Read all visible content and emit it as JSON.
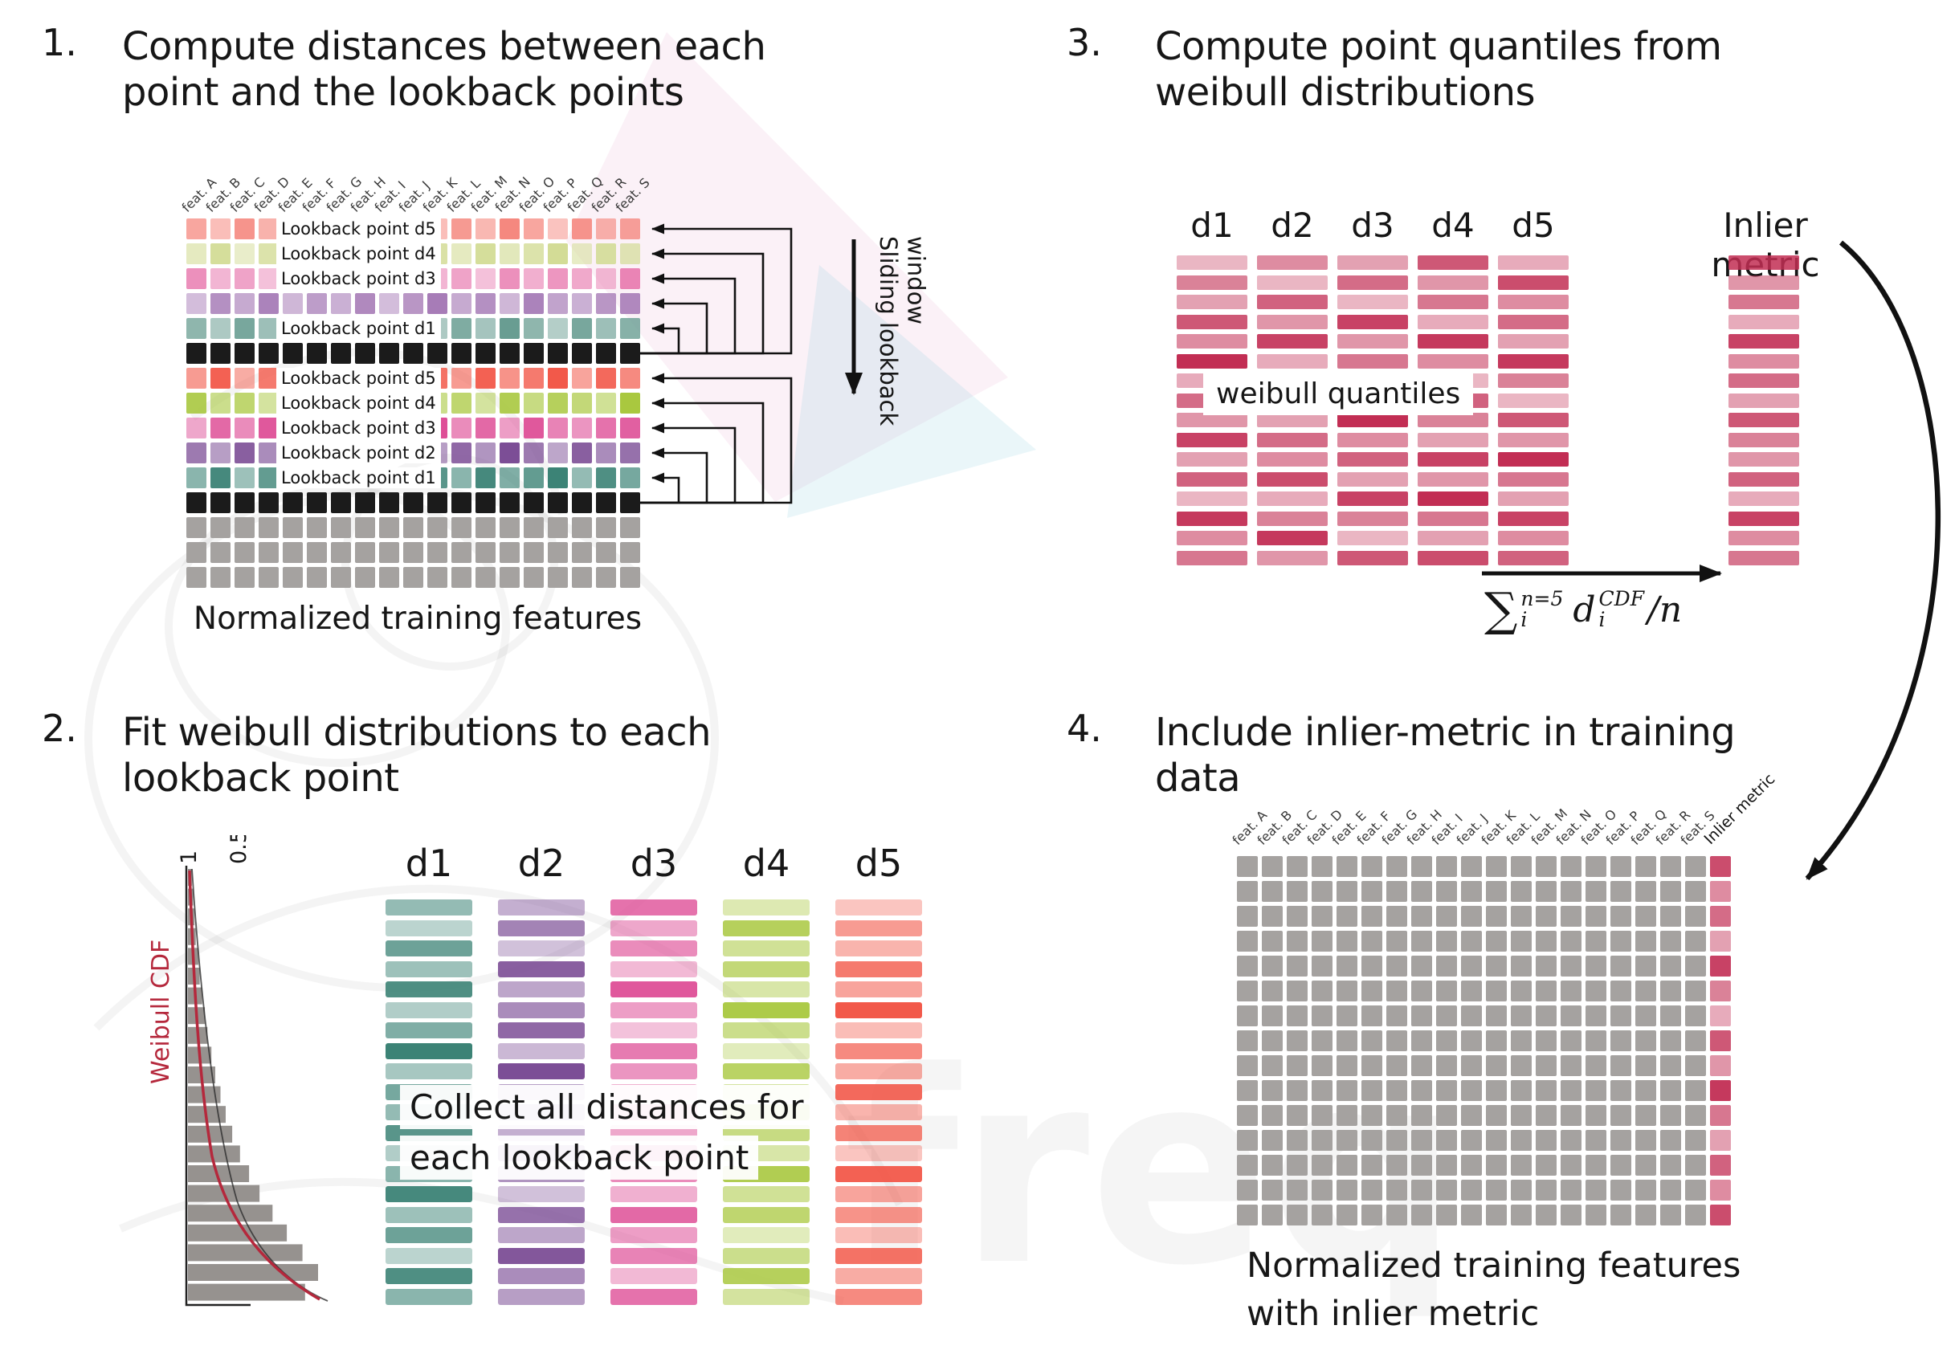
{
  "watermark": {
    "text": "freq"
  },
  "colors": {
    "crimson": "#c22e54",
    "black_cell": "#1b1b1b",
    "gray_cell": "#a5a2a0",
    "weibull_red": "#b5283c",
    "d1": "#3c8376",
    "d2": "#7c4e96",
    "d3": "#de4f97",
    "d4": "#a9c83f",
    "d5": "#f2594a"
  },
  "distance_labels": [
    "d1",
    "d2",
    "d3",
    "d4",
    "d5"
  ],
  "steps": [
    {
      "num": "1.",
      "title": "Compute distances between each\npoint and the lookback points"
    },
    {
      "num": "2.",
      "title": "Fit weibull distributions to each\nlookback point"
    },
    {
      "num": "3.",
      "title": "Compute point quantiles from\nweibull distributions"
    },
    {
      "num": "4.",
      "title": "Include inlier-metric in training\ndata"
    }
  ],
  "panel1": {
    "feature_labels": [
      "feat. A",
      "feat. B",
      "feat. C",
      "feat. D",
      "feat. E",
      "feat. F",
      "feat. G",
      "feat. H",
      "feat. I",
      "feat. J",
      "feat. K",
      "feat. L",
      "feat. M",
      "feat. N",
      "feat. O",
      "feat. P",
      "feat. Q",
      "feat. R",
      "feat. S"
    ],
    "rows": [
      {
        "type": "lookback",
        "color": "#f5887f",
        "label": "Lookback point d5",
        "pat": "A"
      },
      {
        "type": "lookback",
        "color": "#d3dc96",
        "label": "Lookback point d4",
        "pat": "B"
      },
      {
        "type": "lookback",
        "color": "#ea84b5",
        "label": "Lookback point d3",
        "pat": "C"
      },
      {
        "type": "lookback",
        "color": "#a77cb7",
        "label": "",
        "pat": "D"
      },
      {
        "type": "lookback",
        "color": "#699d92",
        "label": "Lookback point d1",
        "pat": "A"
      },
      {
        "type": "black"
      },
      {
        "type": "lookback",
        "color": "#f2594a",
        "label": "Lookback point d5",
        "pat": "B"
      },
      {
        "type": "lookback",
        "color": "#a9c83f",
        "label": "Lookback point d4",
        "pat": "C"
      },
      {
        "type": "lookback",
        "color": "#de4f97",
        "label": "Lookback point d3",
        "pat": "D"
      },
      {
        "type": "lookback",
        "color": "#7c4e96",
        "label": "Lookback point d2",
        "pat": "A"
      },
      {
        "type": "lookback",
        "color": "#3c8376",
        "label": "Lookback point d1",
        "pat": "B"
      },
      {
        "type": "black"
      },
      {
        "type": "gray"
      },
      {
        "type": "gray"
      },
      {
        "type": "gray"
      }
    ],
    "caption": "Normalized training features",
    "sliding_window_label": "Sliding lookback window"
  },
  "panel2": {
    "axis_ticks": [
      "1",
      "0.5"
    ],
    "cdf_label": "Weibull CDF",
    "overlay": "Collect all distances for\neach lookback point",
    "columns": [
      {
        "color": "#3c8376",
        "pat": "F"
      },
      {
        "color": "#7c4e96",
        "pat": "G"
      },
      {
        "color": "#de4f97",
        "pat": "H"
      },
      {
        "color": "#a9c83f",
        "pat": "I"
      },
      {
        "color": "#f2594a",
        "pat": "E"
      }
    ],
    "histogram": [
      0.03,
      0.04,
      0.05,
      0.06,
      0.08,
      0.09,
      0.11,
      0.13,
      0.15,
      0.18,
      0.21,
      0.25,
      0.29,
      0.34,
      0.4,
      0.47,
      0.55,
      0.65,
      0.76,
      0.88,
      1.0,
      0.9
    ]
  },
  "panel3": {
    "overlay": "weibull quantiles",
    "inlier_label": "Inlier metric",
    "columns": [
      {
        "pat": "E"
      },
      {
        "pat": "F"
      },
      {
        "pat": "G"
      },
      {
        "pat": "H"
      },
      {
        "pat": "I"
      }
    ],
    "inlier_pat": [
      0.85,
      0.5,
      0.65,
      0.4,
      0.9,
      0.55,
      0.7,
      0.45,
      0.8,
      0.6,
      0.5,
      0.75,
      0.4,
      0.9,
      0.55,
      0.65
    ],
    "formula": {
      "sum": "∑",
      "sum_sup": "n=5",
      "sum_sub": "i",
      "d": "d",
      "d_sup": "CDF",
      "d_sub": "i",
      "tail": "/n"
    }
  },
  "panel4": {
    "inlier_col_label": "Inlier metric",
    "inlier_pat": [
      0.85,
      0.55,
      0.7,
      0.45,
      0.9,
      0.6,
      0.4,
      0.8,
      0.5,
      0.95,
      0.65,
      0.45,
      0.75,
      0.55,
      0.85
    ],
    "caption": "Normalized training features\nwith inlier metric"
  },
  "patterns": {
    "A": [
      0.75,
      0.55,
      0.9,
      0.65,
      1,
      0.5,
      0.8,
      0.6,
      0.95,
      0.7,
      0.55,
      0.85,
      0.6,
      1,
      0.75,
      0.5,
      0.9,
      0.65,
      0.8
    ],
    "B": [
      0.6,
      0.95,
      0.5,
      0.8,
      0.65,
      0.9,
      0.55,
      1,
      0.7,
      0.5,
      0.85,
      0.6,
      0.95,
      0.65,
      0.8,
      1,
      0.55,
      0.9,
      0.7
    ],
    "C": [
      0.9,
      0.6,
      0.75,
      0.5,
      0.85,
      0.7,
      1,
      0.55,
      0.8,
      0.95,
      0.6,
      0.75,
      0.5,
      0.9,
      0.65,
      0.85,
      0.7,
      0.55,
      1
    ],
    "D": [
      0.5,
      0.85,
      0.65,
      0.95,
      0.55,
      0.75,
      0.6,
      0.9,
      0.5,
      0.8,
      1,
      0.65,
      0.85,
      0.55,
      0.95,
      0.7,
      0.6,
      0.8,
      0.9
    ],
    "E": [
      0.35,
      0.6,
      0.45,
      0.8,
      0.55,
      1,
      0.4,
      0.7,
      0.5,
      0.9,
      0.45,
      0.75,
      0.35,
      0.95,
      0.55,
      0.65,
      0.4,
      0.85,
      0.5,
      0.7
    ],
    "F": [
      0.55,
      0.35,
      0.75,
      0.5,
      0.9,
      0.4,
      0.65,
      1,
      0.45,
      0.7,
      0.55,
      0.85,
      0.4,
      0.6,
      0.95,
      0.5,
      0.75,
      0.35,
      0.9,
      0.6
    ],
    "G": [
      0.45,
      0.7,
      0.35,
      0.9,
      0.5,
      0.65,
      0.85,
      0.4,
      1,
      0.55,
      0.75,
      0.45,
      0.9,
      0.6,
      0.35,
      0.8,
      0.5,
      0.95,
      0.65,
      0.55
    ],
    "H": [
      0.8,
      0.5,
      0.65,
      0.4,
      0.95,
      0.55,
      0.35,
      0.75,
      0.6,
      0.45,
      0.9,
      0.5,
      1,
      0.65,
      0.45,
      0.85,
      0.55,
      0.7,
      0.4,
      0.8
    ],
    "I": [
      0.4,
      0.85,
      0.55,
      0.7,
      0.45,
      0.95,
      0.6,
      0.35,
      0.8,
      0.5,
      1,
      0.65,
      0.45,
      0.9,
      0.55,
      0.75,
      0.35,
      0.6,
      0.85,
      0.5
    ]
  }
}
